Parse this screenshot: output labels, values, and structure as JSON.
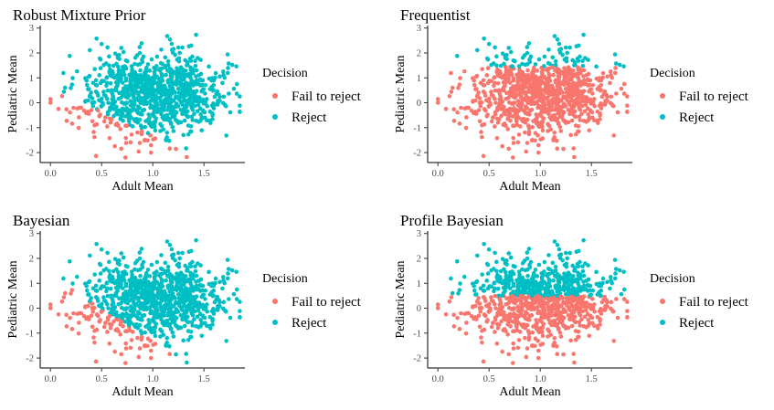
{
  "chart_data": [
    {
      "type": "scatter",
      "title": "Robust Mixture Prior",
      "xlabel": "Adult Mean",
      "ylabel": "Pediatric Mean",
      "xlim": [
        -0.1,
        1.9
      ],
      "ylim": [
        -2.4,
        3.1
      ],
      "xticks": [
        "0.0",
        "0.5",
        "1.0",
        "1.5"
      ],
      "yticks": [
        "-2",
        "-1",
        "0",
        "1",
        "2",
        "3"
      ],
      "legend": {
        "title": "Decision",
        "items": [
          "Fail to reject",
          "Reject"
        ]
      },
      "decision_rule": "robust",
      "n_points": 1000,
      "x_distribution": {
        "mean": 1.0,
        "sd": 0.33
      },
      "y_distribution": {
        "mean": 0.3,
        "sd": 0.8
      }
    },
    {
      "type": "scatter",
      "title": "Frequentist",
      "xlabel": "Adult Mean",
      "ylabel": "Pediatric Mean",
      "xlim": [
        -0.1,
        1.9
      ],
      "ylim": [
        -2.4,
        3.1
      ],
      "xticks": [
        "0.0",
        "0.5",
        "1.0",
        "1.5"
      ],
      "yticks": [
        "-2",
        "-1",
        "0",
        "1",
        "2",
        "3"
      ],
      "legend": {
        "title": "Decision",
        "items": [
          "Fail to reject",
          "Reject"
        ]
      },
      "decision_rule": "frequentist",
      "reject_threshold_y": 1.45,
      "n_points": 1000,
      "x_distribution": {
        "mean": 1.0,
        "sd": 0.33
      },
      "y_distribution": {
        "mean": 0.3,
        "sd": 0.8
      }
    },
    {
      "type": "scatter",
      "title": "Bayesian",
      "xlabel": "Adult Mean",
      "ylabel": "Pediatric Mean",
      "xlim": [
        -0.1,
        1.9
      ],
      "ylim": [
        -2.4,
        3.1
      ],
      "xticks": [
        "0.0",
        "0.5",
        "1.0",
        "1.5"
      ],
      "yticks": [
        "-2",
        "-1",
        "0",
        "1",
        "2",
        "3"
      ],
      "legend": {
        "title": "Decision",
        "items": [
          "Fail to reject",
          "Reject"
        ]
      },
      "decision_rule": "bayesian",
      "n_points": 1000,
      "x_distribution": {
        "mean": 1.0,
        "sd": 0.33
      },
      "y_distribution": {
        "mean": 0.3,
        "sd": 0.8
      }
    },
    {
      "type": "scatter",
      "title": "Profile Bayesian",
      "xlabel": "Adult Mean",
      "ylabel": "Pediatric Mean",
      "xlim": [
        -0.1,
        1.9
      ],
      "ylim": [
        -2.4,
        3.1
      ],
      "xticks": [
        "0.0",
        "0.5",
        "1.0",
        "1.5"
      ],
      "yticks": [
        "-2",
        "-1",
        "0",
        "1",
        "2",
        "3"
      ],
      "legend": {
        "title": "Decision",
        "items": [
          "Fail to reject",
          "Reject"
        ]
      },
      "decision_rule": "profile",
      "reject_threshold_y": 0.5,
      "n_points": 1000,
      "x_distribution": {
        "mean": 1.0,
        "sd": 0.33
      },
      "y_distribution": {
        "mean": 0.3,
        "sd": 0.8
      }
    }
  ],
  "colors": {
    "fail_to_reject": "#F8766D",
    "reject": "#00BFC4"
  }
}
